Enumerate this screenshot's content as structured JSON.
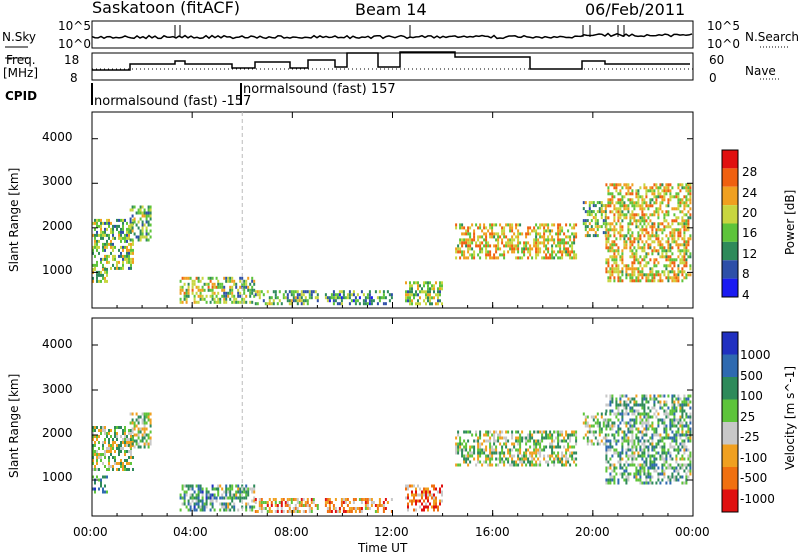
{
  "header": {
    "station": "Saskatoon (fitACF)",
    "beam": "Beam 14",
    "date": "06/Feb/2011"
  },
  "noise_panel": {
    "left_label": "N.Sky",
    "right_label": "N.Search",
    "left_ticks": [
      "10^5",
      "10^0"
    ],
    "right_ticks": [
      "10^5",
      "10^0"
    ]
  },
  "freq_panel": {
    "left_label_top": "Freq.",
    "left_label_bottom": "[MHz]",
    "left_ticks": [
      "18",
      "8"
    ],
    "right_label": "Nave",
    "right_ticks": [
      "60",
      "0"
    ]
  },
  "cpid": {
    "label": "CPID",
    "segments": [
      {
        "text": "normalsound (fast) -157"
      },
      {
        "text": "normalsound (fast) 157"
      }
    ]
  },
  "chart_data": [
    {
      "type": "heatmap",
      "name": "power",
      "ylabel": "Slant Range [km]",
      "yticks": [
        "1000",
        "2000",
        "3000",
        "4000"
      ],
      "ylim": [
        200,
        4600
      ],
      "xlim": [
        0,
        24
      ],
      "colorbar": {
        "label": "Power [dB]",
        "ticks": [
          "4",
          "8",
          "12",
          "16",
          "20",
          "24",
          "28"
        ],
        "colors": [
          "#1b1bf2",
          "#2e4fa8",
          "#2e8a5a",
          "#5ec43a",
          "#c8d640",
          "#f0a020",
          "#f06010",
          "#e01010"
        ]
      },
      "regions": [
        {
          "t0": 0.0,
          "t1": 1.6,
          "r0": 1100,
          "r1": 2200,
          "level": 0.45
        },
        {
          "t0": 1.5,
          "t1": 2.3,
          "r0": 1700,
          "r1": 2500,
          "level": 0.4
        },
        {
          "t0": 0.0,
          "t1": 0.6,
          "r0": 800,
          "r1": 1100,
          "level": 0.5
        },
        {
          "t0": 3.5,
          "t1": 5.0,
          "r0": 300,
          "r1": 900,
          "level": 0.55
        },
        {
          "t0": 5.0,
          "t1": 6.5,
          "r0": 300,
          "r1": 900,
          "level": 0.45
        },
        {
          "t0": 6.5,
          "t1": 9.0,
          "r0": 300,
          "r1": 600,
          "level": 0.4
        },
        {
          "t0": 9.3,
          "t1": 12.0,
          "r0": 300,
          "r1": 600,
          "level": 0.35
        },
        {
          "t0": 12.5,
          "t1": 14.0,
          "r0": 300,
          "r1": 800,
          "level": 0.45
        },
        {
          "t0": 14.5,
          "t1": 19.3,
          "r0": 1300,
          "r1": 2100,
          "level": 0.6
        },
        {
          "t0": 19.6,
          "t1": 20.5,
          "r0": 1800,
          "r1": 2600,
          "level": 0.45
        },
        {
          "t0": 20.5,
          "t1": 23.9,
          "r0": 800,
          "r1": 3000,
          "level": 0.6
        }
      ]
    },
    {
      "type": "heatmap",
      "name": "velocity",
      "ylabel": "Slant Range [km]",
      "yticks": [
        "1000",
        "2000",
        "3000",
        "4000"
      ],
      "xlabel": "Time UT",
      "xticks": [
        "00:00",
        "04:00",
        "08:00",
        "12:00",
        "16:00",
        "20:00",
        "00:00"
      ],
      "ylim": [
        200,
        4600
      ],
      "xlim": [
        0,
        24
      ],
      "colorbar": {
        "label": "Velocity [m s^-1]",
        "ticks": [
          "1000",
          "500",
          "100",
          "25",
          "-25",
          "-100",
          "-500",
          "-1000"
        ],
        "colors": [
          "#2030c0",
          "#2f6ab0",
          "#2e8a5a",
          "#5ec43a",
          "#c8c8c8",
          "#f0a020",
          "#f07010",
          "#e01010"
        ]
      },
      "regions": [
        {
          "t0": 0.0,
          "t1": 1.6,
          "r0": 1200,
          "r1": 2200,
          "level": 0.5
        },
        {
          "t0": 1.5,
          "t1": 2.3,
          "r0": 1700,
          "r1": 2500,
          "level": 0.5
        },
        {
          "t0": 0.0,
          "t1": 0.6,
          "r0": 700,
          "r1": 1100,
          "level": 0.3
        },
        {
          "t0": 3.5,
          "t1": 5.0,
          "r0": 300,
          "r1": 900,
          "level": 0.35
        },
        {
          "t0": 5.0,
          "t1": 6.5,
          "r0": 300,
          "r1": 900,
          "level": 0.45
        },
        {
          "t0": 6.5,
          "t1": 9.0,
          "r0": 300,
          "r1": 600,
          "level": 0.7
        },
        {
          "t0": 9.3,
          "t1": 12.0,
          "r0": 300,
          "r1": 600,
          "level": 0.72
        },
        {
          "t0": 12.5,
          "t1": 14.0,
          "r0": 300,
          "r1": 900,
          "level": 0.75
        },
        {
          "t0": 14.5,
          "t1": 19.3,
          "r0": 1300,
          "r1": 2100,
          "level": 0.5
        },
        {
          "t0": 19.6,
          "t1": 20.5,
          "r0": 1800,
          "r1": 2500,
          "level": 0.5
        },
        {
          "t0": 20.5,
          "t1": 23.9,
          "r0": 900,
          "r1": 2900,
          "level": 0.4
        }
      ]
    }
  ]
}
